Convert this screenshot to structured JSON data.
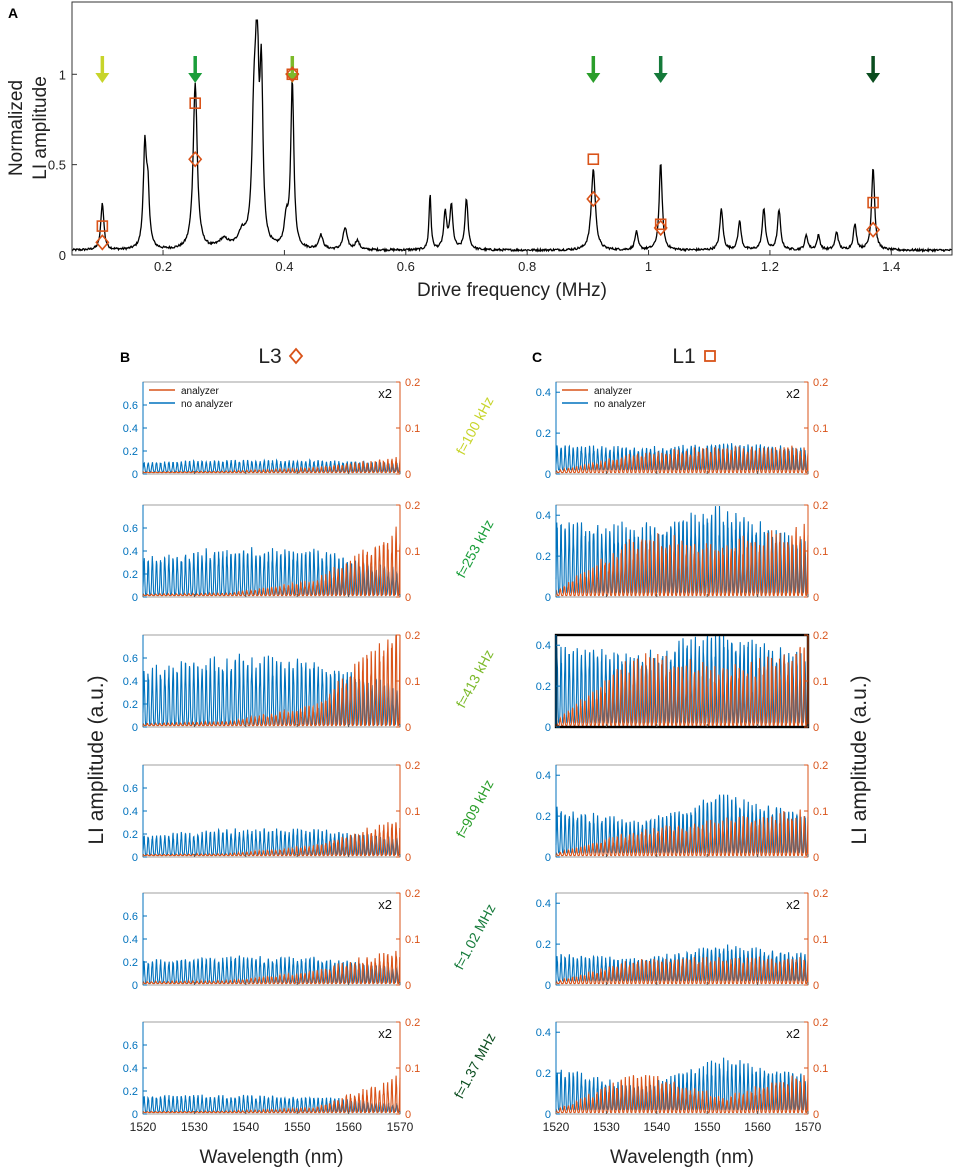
{
  "colors": {
    "analyzer": "#d95319",
    "no_analyzer": "#0072bd",
    "trace": "#000000",
    "freq_colors": [
      "#c7d42a",
      "#1a9e3a",
      "#7cba2a",
      "#2a9e2a",
      "#157a3a",
      "#0b4d1f"
    ]
  },
  "chart_data": [
    {
      "type": "line",
      "panel": "A",
      "xlabel": "Drive frequency (MHz)",
      "ylabel_line1": "Normalized",
      "ylabel_line2": "LI amplitude",
      "xlim": [
        0.05,
        1.5
      ],
      "ylim": [
        0,
        1.4
      ],
      "xticks": [
        0.2,
        0.4,
        0.6,
        0.8,
        1,
        1.2,
        1.4
      ],
      "xtick_labels": [
        "0.2",
        "0.4",
        "0.6",
        "0.8",
        "1",
        "1.2",
        "1.4"
      ],
      "yticks": [
        0,
        0.5,
        1
      ],
      "ytick_labels": [
        "0",
        "0.5",
        "1"
      ],
      "peaks": [
        {
          "f": 0.1,
          "a": 0.26,
          "w": 0.003
        },
        {
          "f": 0.17,
          "a": 0.55,
          "w": 0.003
        },
        {
          "f": 0.175,
          "a": 0.3,
          "w": 0.003
        },
        {
          "f": 0.253,
          "a": 0.92,
          "w": 0.004
        },
        {
          "f": 0.3,
          "a": 0.05,
          "w": 0.01
        },
        {
          "f": 0.33,
          "a": 0.08,
          "w": 0.008
        },
        {
          "f": 0.35,
          "a": 0.7,
          "w": 0.004
        },
        {
          "f": 0.355,
          "a": 0.98,
          "w": 0.003
        },
        {
          "f": 0.362,
          "a": 0.9,
          "w": 0.003
        },
        {
          "f": 0.403,
          "a": 0.15,
          "w": 0.004
        },
        {
          "f": 0.413,
          "a": 0.92,
          "w": 0.003
        },
        {
          "f": 0.46,
          "a": 0.08,
          "w": 0.004
        },
        {
          "f": 0.5,
          "a": 0.12,
          "w": 0.004
        },
        {
          "f": 0.52,
          "a": 0.05,
          "w": 0.004
        },
        {
          "f": 0.64,
          "a": 0.31,
          "w": 0.002
        },
        {
          "f": 0.665,
          "a": 0.2,
          "w": 0.003
        },
        {
          "f": 0.675,
          "a": 0.24,
          "w": 0.003
        },
        {
          "f": 0.7,
          "a": 0.28,
          "w": 0.003
        },
        {
          "f": 0.909,
          "a": 0.45,
          "w": 0.004
        },
        {
          "f": 0.98,
          "a": 0.1,
          "w": 0.003
        },
        {
          "f": 1.02,
          "a": 0.48,
          "w": 0.003
        },
        {
          "f": 1.12,
          "a": 0.23,
          "w": 0.003
        },
        {
          "f": 1.15,
          "a": 0.16,
          "w": 0.003
        },
        {
          "f": 1.19,
          "a": 0.23,
          "w": 0.003
        },
        {
          "f": 1.215,
          "a": 0.22,
          "w": 0.003
        },
        {
          "f": 1.26,
          "a": 0.08,
          "w": 0.003
        },
        {
          "f": 1.28,
          "a": 0.08,
          "w": 0.003
        },
        {
          "f": 1.31,
          "a": 0.1,
          "w": 0.003
        },
        {
          "f": 1.34,
          "a": 0.14,
          "w": 0.003
        },
        {
          "f": 1.37,
          "a": 0.46,
          "w": 0.003
        }
      ],
      "arrows": [
        {
          "f": 0.1,
          "color": "#c7d42a"
        },
        {
          "f": 0.253,
          "color": "#1a9e3a"
        },
        {
          "f": 0.413,
          "color": "#7cba2a"
        },
        {
          "f": 0.909,
          "color": "#2a9e2a"
        },
        {
          "f": 1.02,
          "color": "#157a3a"
        },
        {
          "f": 1.37,
          "color": "#0b4d1f"
        }
      ],
      "squares_L1": [
        [
          0.1,
          0.16
        ],
        [
          0.253,
          0.84
        ],
        [
          0.413,
          1.0
        ],
        [
          0.909,
          0.53
        ],
        [
          1.02,
          0.17
        ],
        [
          1.37,
          0.29
        ]
      ],
      "diamonds_L3": [
        [
          0.1,
          0.07
        ],
        [
          0.253,
          0.53
        ],
        [
          0.413,
          1.0
        ],
        [
          0.909,
          0.31
        ],
        [
          1.02,
          0.15
        ],
        [
          1.37,
          0.14
        ]
      ]
    },
    {
      "type": "line",
      "panel": "B",
      "title": "L3",
      "xlabel": "Wavelength (nm)",
      "ylabel": "LI amplitude (a.u.)",
      "xlim": [
        1520,
        1570
      ],
      "xticks": [
        1520,
        1530,
        1540,
        1550,
        1560,
        1570
      ],
      "xtick_labels": [
        "1520",
        "1530",
        "1540",
        "1550",
        "1560",
        "1570"
      ],
      "ylim_left": [
        0,
        0.8
      ],
      "yticks_left": [
        "0",
        "0.2",
        "0.4",
        "0.6"
      ],
      "ylim_right": [
        0,
        0.2
      ],
      "yticks_right": [
        "0",
        "0.1",
        "0.2"
      ],
      "legend": [
        "analyzer",
        "no analyzer"
      ],
      "rows": [
        {
          "label": "f=100 kHz",
          "mult": "x2",
          "blue_amp": [
            0.08,
            0.09,
            0.09,
            0.07
          ],
          "red_amp": [
            0.001,
            0.003,
            0.01,
            0.03
          ]
        },
        {
          "label": "f=253 kHz",
          "mult": "",
          "blue_amp": [
            0.3,
            0.37,
            0.35,
            0.2
          ],
          "red_amp": [
            0.003,
            0.005,
            0.03,
            0.13
          ]
        },
        {
          "label": "f=413 kHz",
          "mult": "",
          "blue_amp": [
            0.45,
            0.54,
            0.52,
            0.3
          ],
          "red_amp": [
            0.004,
            0.008,
            0.04,
            0.2
          ]
        },
        {
          "label": "f=909 kHz",
          "mult": "",
          "blue_amp": [
            0.15,
            0.2,
            0.2,
            0.13
          ],
          "red_amp": [
            0.002,
            0.004,
            0.02,
            0.07
          ]
        },
        {
          "label": "f=1.02 MHz",
          "mult": "x2",
          "blue_amp": [
            0.18,
            0.21,
            0.2,
            0.12
          ],
          "red_amp": [
            0.004,
            0.006,
            0.025,
            0.07
          ]
        },
        {
          "label": "f=1.37 MHz",
          "mult": "x2",
          "blue_amp": [
            0.13,
            0.13,
            0.12,
            0.06
          ],
          "red_amp": [
            0.002,
            0.003,
            0.01,
            0.07
          ]
        }
      ]
    },
    {
      "type": "line",
      "panel": "C",
      "title": "L1",
      "xlabel": "Wavelength (nm)",
      "ylabel": "LI amplitude (a.u.)",
      "xlim": [
        1520,
        1570
      ],
      "xticks": [
        1520,
        1530,
        1540,
        1550,
        1560,
        1570
      ],
      "xtick_labels": [
        "1520",
        "1530",
        "1540",
        "1550",
        "1560",
        "1570"
      ],
      "ylim_left": [
        0,
        0.45
      ],
      "yticks_left": [
        "0",
        "0.2",
        "0.4"
      ],
      "ylim_right": [
        0,
        0.2
      ],
      "yticks_right": [
        "0",
        "0.1",
        "0.2"
      ],
      "legend": [
        "analyzer",
        "no analyzer"
      ],
      "rows": [
        {
          "label": "f=100 kHz",
          "mult": "x2",
          "blue_amp": [
            0.11,
            0.1,
            0.12,
            0.1
          ],
          "red_amp": [
            0.004,
            0.04,
            0.05,
            0.05
          ]
        },
        {
          "label": "f=253 kHz",
          "mult": "",
          "blue_amp": [
            0.33,
            0.3,
            0.38,
            0.24
          ],
          "red_amp": [
            0.01,
            0.12,
            0.1,
            0.14
          ]
        },
        {
          "label": "f=413 kHz",
          "mult": "",
          "blue_amp": [
            0.36,
            0.3,
            0.42,
            0.3
          ],
          "red_amp": [
            0.01,
            0.14,
            0.11,
            0.15
          ]
        },
        {
          "label": "f=909 kHz",
          "mult": "",
          "blue_amp": [
            0.2,
            0.14,
            0.26,
            0.17
          ],
          "red_amp": [
            0.005,
            0.05,
            0.07,
            0.09
          ]
        },
        {
          "label": "f=1.02 MHz",
          "mult": "x2",
          "blue_amp": [
            0.12,
            0.1,
            0.16,
            0.12
          ],
          "red_amp": [
            0.005,
            0.05,
            0.05,
            0.05
          ]
        },
        {
          "label": "f=1.37 MHz",
          "mult": "x2",
          "blue_amp": [
            0.19,
            0.1,
            0.23,
            0.15
          ],
          "red_amp": [
            0.005,
            0.08,
            0.03,
            0.08
          ]
        }
      ]
    }
  ],
  "panel_letters": [
    "A",
    "B",
    "C"
  ],
  "highlight": {
    "panel": "C",
    "row": 2
  }
}
